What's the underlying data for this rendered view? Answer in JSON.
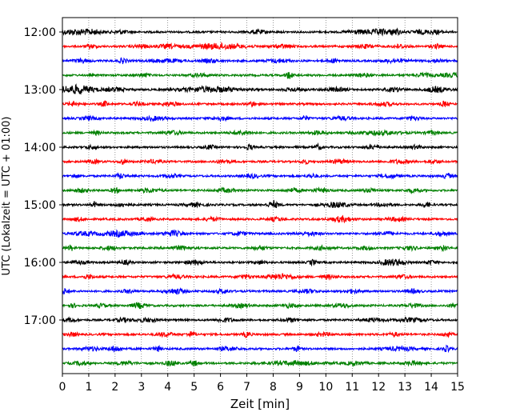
{
  "chart_data": {
    "type": "line",
    "title": "",
    "xlabel": "Zeit  [min]",
    "ylabel": "UTC (Lokalzeit = UTC + 01:00)",
    "xlim": [
      0,
      15
    ],
    "x_ticks": [
      "0",
      "1",
      "2",
      "3",
      "4",
      "5",
      "6",
      "7",
      "8",
      "9",
      "10",
      "11",
      "12",
      "13",
      "14",
      "15"
    ],
    "y_tick_labels": [
      "12:00",
      "13:00",
      "14:00",
      "15:00",
      "16:00",
      "17:00"
    ],
    "grid": "vertical-dotted",
    "trace_interval_min": 15,
    "trace_colors": [
      "#000000",
      "#ff0000",
      "#0000ff",
      "#008000"
    ],
    "traces": [
      {
        "start": "12:00",
        "color": "#000000",
        "events": [
          [
            0.5,
            3,
            0.8
          ],
          [
            1.2,
            2,
            0.5
          ],
          [
            2.2,
            2,
            0.4
          ],
          [
            7.4,
            2,
            0.5
          ],
          [
            11.1,
            2,
            0.5
          ],
          [
            11.7,
            2,
            0.5
          ],
          [
            12.1,
            3,
            0.3
          ],
          [
            12.6,
            4,
            0.3
          ],
          [
            13.6,
            2,
            0.5
          ],
          [
            14.2,
            2,
            0.4
          ]
        ]
      },
      {
        "start": "12:15",
        "color": "#ff0000",
        "events": [
          [
            1.1,
            2,
            0.3
          ],
          [
            3.0,
            2,
            0.4
          ],
          [
            4.0,
            2,
            0.6
          ],
          [
            5.9,
            3,
            1.5
          ],
          [
            8.4,
            2,
            0.5
          ],
          [
            11.5,
            2,
            0.5
          ],
          [
            12.8,
            2,
            0.4
          ],
          [
            14.2,
            2,
            0.3
          ]
        ]
      },
      {
        "start": "12:30",
        "color": "#0000ff",
        "events": [
          [
            0.7,
            2,
            0.4
          ],
          [
            2.3,
            3,
            0.2
          ],
          [
            3.9,
            2,
            0.8
          ],
          [
            5.6,
            2,
            0.4
          ],
          [
            8.2,
            2,
            0.6
          ],
          [
            10.3,
            2,
            0.3
          ],
          [
            12.6,
            2,
            0.6
          ],
          [
            14.2,
            2,
            0.3
          ]
        ]
      },
      {
        "start": "12:45",
        "color": "#008000",
        "events": [
          [
            3.1,
            2,
            0.3
          ],
          [
            5.2,
            2,
            0.4
          ],
          [
            8.6,
            4,
            0.2
          ],
          [
            11.4,
            2,
            0.4
          ],
          [
            13.7,
            2,
            0.4
          ],
          [
            14.8,
            2,
            0.8
          ]
        ]
      },
      {
        "start": "13:00",
        "color": "#000000",
        "events": [
          [
            0.5,
            5,
            1.0
          ],
          [
            2.0,
            2,
            0.6
          ],
          [
            5.6,
            3,
            1.6
          ],
          [
            8.8,
            2,
            0.5
          ],
          [
            10.4,
            2,
            0.6
          ],
          [
            12.6,
            2,
            0.5
          ],
          [
            14.2,
            3,
            0.6
          ]
        ]
      },
      {
        "start": "13:15",
        "color": "#ff0000",
        "events": [
          [
            0.4,
            2,
            0.3
          ],
          [
            1.6,
            3,
            0.2
          ],
          [
            2.9,
            2,
            0.3
          ],
          [
            4.1,
            2,
            0.5
          ],
          [
            7.2,
            3,
            0.2
          ],
          [
            12.2,
            2,
            0.5
          ],
          [
            14.5,
            3,
            0.2
          ]
        ]
      },
      {
        "start": "13:30",
        "color": "#0000ff",
        "events": [
          [
            1.0,
            2,
            0.4
          ],
          [
            3.5,
            2,
            0.6
          ],
          [
            6.0,
            2,
            0.5
          ],
          [
            9.2,
            3,
            0.2
          ],
          [
            10.6,
            2,
            0.5
          ],
          [
            13.3,
            2,
            0.4
          ]
        ]
      },
      {
        "start": "13:45",
        "color": "#008000",
        "events": [
          [
            1.3,
            2,
            0.2
          ],
          [
            4.2,
            2,
            0.5
          ],
          [
            6.8,
            2,
            0.6
          ],
          [
            9.7,
            2,
            0.4
          ],
          [
            12.0,
            2,
            1.2
          ],
          [
            14.0,
            2,
            0.3
          ]
        ]
      },
      {
        "start": "14:00",
        "color": "#000000",
        "events": [
          [
            1.1,
            2,
            0.3
          ],
          [
            5.6,
            2,
            0.3
          ],
          [
            7.1,
            3,
            0.2
          ],
          [
            9.7,
            3,
            0.2
          ],
          [
            11.8,
            2,
            0.4
          ],
          [
            13.4,
            2,
            0.3
          ]
        ]
      },
      {
        "start": "14:15",
        "color": "#ff0000",
        "events": [
          [
            1.2,
            2,
            0.3
          ],
          [
            2.3,
            3,
            0.2
          ],
          [
            3.5,
            2,
            0.4
          ],
          [
            6.1,
            2,
            0.4
          ],
          [
            9.2,
            3,
            0.2
          ],
          [
            10.5,
            2,
            0.5
          ],
          [
            12.8,
            2,
            0.5
          ],
          [
            14.1,
            2,
            0.3
          ]
        ]
      },
      {
        "start": "14:30",
        "color": "#0000ff",
        "events": [
          [
            0.5,
            2,
            0.2
          ],
          [
            2.2,
            3,
            0.2
          ],
          [
            4.1,
            2,
            0.4
          ],
          [
            7.2,
            2,
            0.4
          ],
          [
            9.5,
            2,
            0.3
          ],
          [
            12.4,
            2,
            0.5
          ],
          [
            14.6,
            3,
            0.2
          ]
        ]
      },
      {
        "start": "14:45",
        "color": "#008000",
        "events": [
          [
            0.7,
            2,
            0.4
          ],
          [
            2.0,
            3,
            0.2
          ],
          [
            3.3,
            2,
            0.6
          ],
          [
            6.2,
            2,
            0.5
          ],
          [
            8.8,
            2,
            0.4
          ],
          [
            9.8,
            2,
            0.5
          ],
          [
            11.7,
            2,
            0.4
          ],
          [
            13.3,
            2,
            0.4
          ]
        ]
      },
      {
        "start": "15:00",
        "color": "#000000",
        "events": [
          [
            1.2,
            3,
            0.2
          ],
          [
            2.3,
            2,
            0.4
          ],
          [
            5.0,
            2,
            0.5
          ],
          [
            8.0,
            4,
            0.3
          ],
          [
            10.4,
            3,
            0.6
          ],
          [
            12.2,
            2,
            0.4
          ],
          [
            13.8,
            3,
            0.2
          ]
        ]
      },
      {
        "start": "15:15",
        "color": "#ff0000",
        "events": [
          [
            0.6,
            2,
            0.3
          ],
          [
            3.2,
            2,
            0.3
          ],
          [
            5.7,
            2,
            0.4
          ],
          [
            8.1,
            2,
            0.4
          ],
          [
            10.6,
            3,
            0.6
          ],
          [
            12.7,
            2,
            0.5
          ]
        ]
      },
      {
        "start": "15:30",
        "color": "#0000ff",
        "events": [
          [
            0.8,
            2,
            0.6
          ],
          [
            2.2,
            3,
            1.0
          ],
          [
            4.2,
            3,
            0.5
          ],
          [
            6.7,
            2,
            0.4
          ],
          [
            9.4,
            2,
            0.5
          ],
          [
            12.3,
            2,
            0.5
          ],
          [
            14.4,
            2,
            0.4
          ]
        ]
      },
      {
        "start": "15:45",
        "color": "#008000",
        "events": [
          [
            0.3,
            3,
            0.2
          ],
          [
            1.8,
            2,
            0.4
          ],
          [
            4.5,
            2,
            0.5
          ],
          [
            7.5,
            2,
            0.4
          ],
          [
            9.9,
            2,
            0.5
          ],
          [
            11.5,
            2,
            0.4
          ],
          [
            13.2,
            2,
            0.4
          ],
          [
            14.5,
            3,
            0.2
          ]
        ]
      },
      {
        "start": "16:00",
        "color": "#000000",
        "events": [
          [
            0.6,
            2,
            0.4
          ],
          [
            2.4,
            2,
            0.3
          ],
          [
            5.0,
            2,
            0.5
          ],
          [
            7.5,
            2,
            0.3
          ],
          [
            9.5,
            3,
            0.2
          ],
          [
            12.3,
            2,
            0.4
          ],
          [
            12.7,
            3,
            0.5
          ],
          [
            14.0,
            2,
            0.3
          ]
        ]
      },
      {
        "start": "16:15",
        "color": "#ff0000",
        "events": [
          [
            1.0,
            2,
            0.3
          ],
          [
            4.3,
            2,
            0.5
          ],
          [
            6.9,
            2,
            0.4
          ],
          [
            8.3,
            3,
            0.8
          ],
          [
            10.1,
            2,
            0.4
          ],
          [
            12.9,
            2,
            0.4
          ]
        ]
      },
      {
        "start": "16:30",
        "color": "#0000ff",
        "events": [
          [
            0.1,
            3,
            0.2
          ],
          [
            2.5,
            2,
            0.3
          ],
          [
            4.3,
            3,
            0.5
          ],
          [
            6.1,
            2,
            0.4
          ],
          [
            9.3,
            2,
            0.5
          ],
          [
            11.0,
            2,
            0.4
          ],
          [
            13.3,
            2,
            0.4
          ]
        ]
      },
      {
        "start": "16:45",
        "color": "#008000",
        "events": [
          [
            0.4,
            2,
            0.2
          ],
          [
            1.5,
            2,
            0.3
          ],
          [
            2.9,
            3,
            0.4
          ],
          [
            6.8,
            2,
            0.5
          ],
          [
            8.6,
            2,
            0.4
          ],
          [
            10.6,
            2,
            0.5
          ],
          [
            13.3,
            2,
            0.4
          ],
          [
            14.9,
            3,
            0.3
          ]
        ]
      },
      {
        "start": "17:00",
        "color": "#000000",
        "events": [
          [
            0.3,
            2,
            0.3
          ],
          [
            2.3,
            2,
            0.4
          ],
          [
            3.2,
            2,
            0.6
          ],
          [
            6.2,
            2,
            0.5
          ],
          [
            8.6,
            2,
            0.4
          ],
          [
            11.8,
            2,
            0.5
          ],
          [
            13.2,
            2,
            0.8
          ]
        ]
      },
      {
        "start": "17:15",
        "color": "#ff0000",
        "events": [
          [
            0.4,
            2,
            0.3
          ],
          [
            3.9,
            2,
            0.5
          ],
          [
            4.9,
            3,
            0.2
          ],
          [
            7.0,
            3,
            0.2
          ],
          [
            9.9,
            2,
            0.4
          ],
          [
            12.6,
            2,
            0.3
          ],
          [
            14.6,
            2,
            0.3
          ]
        ]
      },
      {
        "start": "17:30",
        "color": "#0000ff",
        "events": [
          [
            1.1,
            2,
            0.5
          ],
          [
            2.0,
            3,
            0.3
          ],
          [
            3.6,
            3,
            0.2
          ],
          [
            6.3,
            2,
            0.6
          ],
          [
            8.9,
            3,
            0.2
          ],
          [
            12.8,
            2,
            0.8
          ],
          [
            14.6,
            3,
            0.2
          ]
        ]
      },
      {
        "start": "17:45",
        "color": "#008000",
        "events": [
          [
            0.7,
            2,
            0.4
          ],
          [
            2.4,
            2,
            0.5
          ],
          [
            4.1,
            3,
            0.3
          ],
          [
            5.0,
            3,
            0.2
          ],
          [
            8.8,
            2,
            1.5
          ],
          [
            11.1,
            2,
            0.5
          ],
          [
            13.3,
            2,
            0.5
          ]
        ]
      }
    ]
  }
}
